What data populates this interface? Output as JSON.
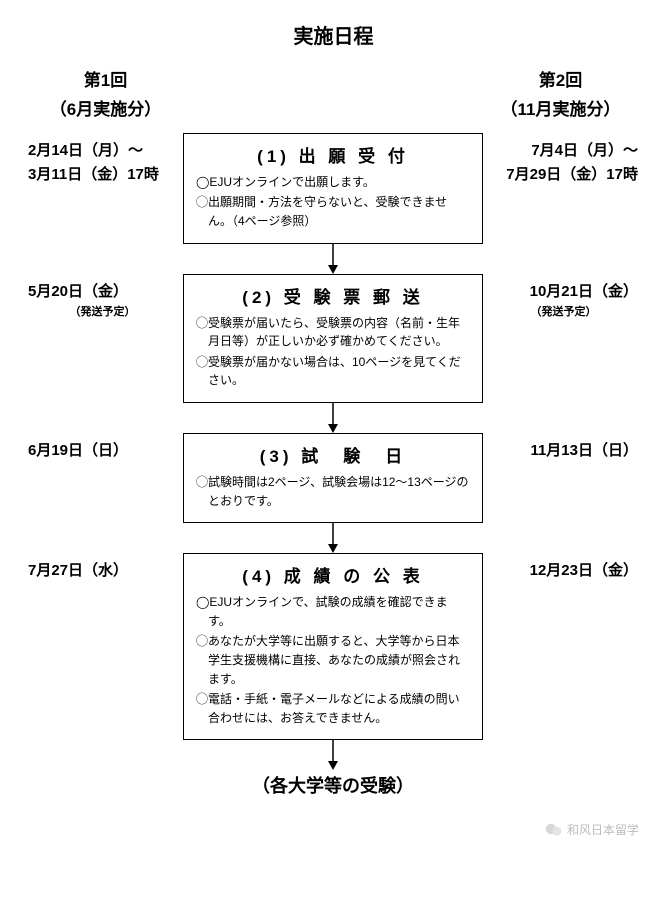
{
  "title": "実施日程",
  "columns": {
    "left": {
      "hdr1": "第1回",
      "hdr2": "（6月実施分）"
    },
    "right": {
      "hdr1": "第2回",
      "hdr2": "（11月実施分）"
    }
  },
  "steps": [
    {
      "left": "2月14日（月）〜\n3月11日（金）17時",
      "right": "7月4日（月）〜\n7月29日（金）17時",
      "title": "(1) 出 願 受 付",
      "body": [
        "◯EJUオンラインで出願します。",
        "◯出願期間・方法を守らないと、受験できません。（4ページ参照）"
      ]
    },
    {
      "left": "5月20日（金）",
      "left_sub": "（発送予定）",
      "right": "10月21日（金）",
      "right_sub": "（発送予定）",
      "title": "(2) 受 験 票 郵 送",
      "body": [
        "◯受験票が届いたら、受験票の内容（名前・生年月日等）が正しいか必ず確かめてください。",
        "◯受験票が届かない場合は、10ページを見てください。"
      ]
    },
    {
      "left": "6月19日（日）",
      "right": "11月13日（日）",
      "title": "(3) 試　験　日",
      "body": [
        "◯試験時間は2ページ、試験会場は12〜13ページのとおりです。"
      ]
    },
    {
      "left": "7月27日（水）",
      "right": "12月23日（金）",
      "title": "(4) 成 績 の 公 表",
      "body": [
        "◯EJUオンラインで、試験の成績を確認できます。",
        "◯あなたが大学等に出願すると、大学等から日本学生支援機構に直接、あなたの成績が照会されます。",
        "◯電話・手紙・電子メールなどによる成績の問い合わせには、お答えできません。"
      ]
    }
  ],
  "final": "（各大学等の受験）",
  "brand": "和风日本留学",
  "colors": {
    "border": "#000000",
    "text": "#000000",
    "brand": "#bdbdbd",
    "bg": "#ffffff"
  }
}
